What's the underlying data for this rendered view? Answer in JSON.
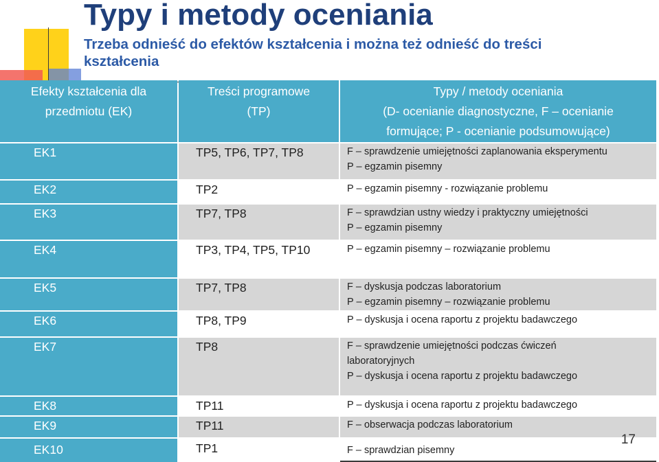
{
  "title": "Typy i metody oceniania",
  "subtitle": "Trzeba odnieść do efektów kształcenia i można też odnieść do treści kształcenia",
  "headers": {
    "col1": [
      "Efekty kształcenia dla",
      "przedmiotu (EK)"
    ],
    "col2": [
      "Treści programowe",
      "(TP)"
    ],
    "col3": [
      "Typy / metody oceniania",
      "(D- ocenianie diagnostyczne, F – ocenianie",
      "formujące; P - ocenianie podsumowujące)"
    ]
  },
  "rows": [
    {
      "ek": "EK1",
      "tp": "TP5, TP6, TP7, TP8",
      "methods": [
        "F – sprawdzenie umiejętności zaplanowania eksperymentu",
        "P – egzamin pisemny"
      ]
    },
    {
      "ek": "EK2",
      "tp": "TP2",
      "methods": [
        "P – egzamin pisemny  - rozwiązanie problemu"
      ]
    },
    {
      "ek": "EK3",
      "tp": "TP7, TP8",
      "methods": [
        "F – sprawdzian ustny wiedzy i praktyczny umiejętności",
        "P – egzamin pisemny"
      ]
    },
    {
      "ek": "EK4",
      "tp": "TP3, TP4, TP5, TP10",
      "methods": [
        "P – egzamin pisemny – rozwiązanie problemu"
      ]
    },
    {
      "ek": "EK5",
      "tp": "TP7, TP8",
      "methods": [
        "F – dyskusja podczas laboratorium",
        "P – egzamin pisemny – rozwiązanie problemu"
      ]
    },
    {
      "ek": "EK6",
      "tp": "TP8, TP9",
      "methods": [
        "P – dyskusja i ocena raportu z projektu badawczego"
      ]
    },
    {
      "ek": "EK7",
      "tp": "TP8",
      "methods": [
        "F – sprawdzenie umiejętności podczas ćwiczeń",
        "laboratoryjnych",
        "P – dyskusja i ocena raportu z projektu badawczego"
      ]
    },
    {
      "ek": "EK8",
      "tp": "TP11",
      "methods": [
        "P – dyskusja i ocena raportu z projektu badawczego"
      ]
    },
    {
      "ek": "EK9",
      "tp": "TP11",
      "methods": [
        "F – obserwacja podczas laboratorium"
      ]
    },
    {
      "ek": "EK10",
      "tp": "TP1",
      "methods": [
        "F – sprawdzian pisemny"
      ]
    }
  ],
  "slide_number": "17"
}
